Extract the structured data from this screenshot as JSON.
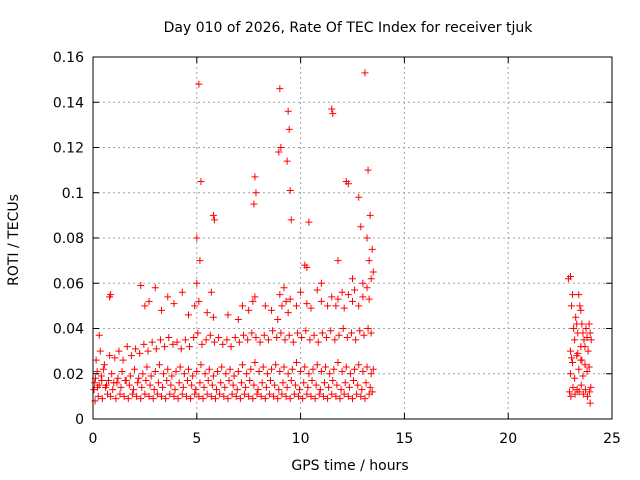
{
  "chart_data": {
    "type": "scatter",
    "title": "Day 010 of 2026, Rate Of TEC Index for receiver tjuk",
    "xlabel": "GPS time / hours",
    "ylabel": "ROTI / TECUs",
    "xlim": [
      0,
      25
    ],
    "ylim": [
      0,
      0.16
    ],
    "x_ticks": [
      0,
      5,
      10,
      15,
      20,
      25
    ],
    "x_tick_labels": [
      "0",
      "5",
      "10",
      "15",
      "20",
      "25"
    ],
    "y_ticks": [
      0,
      0.02,
      0.04,
      0.06,
      0.08,
      0.1,
      0.12,
      0.14,
      0.16
    ],
    "y_tick_labels": [
      "0",
      "0.02",
      "0.04",
      "0.06",
      "0.08",
      "0.1",
      "0.12",
      "0.14",
      "0.16"
    ],
    "grid": true,
    "marker": "+",
    "color": "#ff0000",
    "series": [
      {
        "name": "ROTI",
        "x": [
          0.05,
          0.12,
          0.2,
          0.3,
          0.4,
          0.5,
          0.6,
          0.75,
          0.9,
          1.0,
          1.2,
          1.4,
          1.6,
          1.8,
          2.0,
          2.2,
          2.4,
          2.6,
          2.8,
          3.0,
          3.2,
          3.4,
          3.6,
          3.8,
          4.0,
          4.2,
          4.4,
          4.6,
          4.8,
          5.0,
          5.2,
          5.4,
          5.6,
          5.8,
          6.0,
          6.2,
          6.4,
          6.6,
          6.8,
          7.0,
          7.2,
          7.4,
          7.6,
          7.8,
          8.0,
          8.2,
          8.4,
          8.6,
          8.8,
          9.0,
          9.2,
          9.4,
          9.6,
          9.8,
          10.0,
          10.2,
          10.4,
          10.6,
          10.8,
          11.0,
          11.2,
          11.4,
          11.6,
          11.8,
          12.0,
          12.2,
          12.4,
          12.6,
          12.8,
          13.0,
          13.2,
          13.4,
          13.5,
          0.1,
          0.25,
          0.45,
          0.7,
          0.85,
          1.1,
          1.3,
          1.5,
          1.7,
          1.9,
          2.1,
          2.3,
          2.5,
          2.7,
          2.9,
          3.1,
          3.3,
          3.5,
          3.7,
          3.9,
          4.1,
          4.3,
          4.5,
          4.7,
          4.9,
          5.1,
          5.3,
          5.5,
          5.7,
          5.9,
          6.1,
          6.3,
          6.5,
          6.7,
          6.9,
          7.1,
          7.3,
          7.5,
          7.7,
          7.9,
          8.1,
          8.3,
          8.5,
          8.7,
          8.9,
          9.1,
          9.3,
          9.5,
          9.7,
          9.9,
          10.1,
          10.3,
          10.5,
          10.7,
          10.9,
          11.1,
          11.3,
          11.5,
          11.7,
          11.9,
          12.1,
          12.3,
          12.5,
          12.7,
          12.9,
          13.1,
          13.3,
          13.45,
          0.15,
          0.35,
          0.55,
          0.8,
          1.05,
          1.25,
          1.45,
          1.65,
          1.85,
          2.05,
          2.25,
          2.45,
          2.65,
          2.85,
          3.05,
          3.25,
          3.45,
          3.65,
          3.85,
          4.05,
          4.25,
          4.45,
          4.65,
          4.85,
          5.05,
          5.25,
          5.45,
          5.65,
          5.85,
          6.05,
          6.25,
          6.45,
          6.65,
          6.85,
          7.05,
          7.25,
          7.45,
          7.65,
          7.85,
          8.05,
          8.25,
          8.45,
          8.65,
          8.85,
          9.05,
          9.25,
          9.45,
          9.65,
          9.85,
          10.05,
          10.25,
          10.45,
          10.65,
          10.85,
          11.05,
          11.25,
          11.45,
          11.65,
          11.85,
          12.05,
          12.25,
          12.45,
          12.65,
          12.85,
          13.05,
          13.25,
          13.4,
          0.08,
          0.22,
          0.42,
          0.65,
          0.95,
          1.15,
          1.35,
          1.55,
          1.75,
          1.95,
          2.15,
          2.35,
          2.55,
          2.75,
          2.95,
          3.15,
          3.35,
          3.55,
          3.75,
          3.95,
          4.15,
          4.35,
          4.55,
          4.75,
          4.95,
          5.15,
          5.35,
          5.55,
          5.75,
          5.95,
          6.15,
          6.35,
          6.55,
          6.75,
          6.95,
          7.15,
          7.35,
          7.55,
          7.75,
          7.95,
          8.15,
          8.35,
          8.55,
          8.75,
          8.95,
          9.15,
          9.35,
          9.55,
          9.75,
          9.95,
          10.15,
          10.35,
          10.55,
          10.75,
          10.95,
          11.15,
          11.35,
          11.55,
          11.75,
          11.95,
          12.15,
          12.35,
          12.55,
          12.75,
          12.95,
          13.15,
          13.35,
          0.3,
          0.8,
          0.85,
          2.3,
          2.5,
          2.7,
          3.0,
          3.3,
          3.6,
          3.9,
          4.3,
          4.6,
          4.9,
          5.0,
          5.1,
          5.5,
          5.7,
          5.8,
          6.5,
          7.0,
          7.2,
          7.5,
          7.7,
          7.8,
          8.3,
          8.6,
          8.9,
          9.0,
          9.1,
          9.2,
          9.3,
          9.4,
          9.5,
          9.8,
          10.0,
          10.3,
          10.5,
          10.8,
          11.0,
          11.3,
          11.5,
          11.7,
          11.8,
          12.0,
          12.1,
          12.3,
          12.5,
          12.6,
          12.8,
          13.0,
          13.2,
          13.3,
          13.4,
          13.5,
          5.1,
          5.2,
          5.0,
          5.15,
          5.8,
          5.85,
          7.8,
          7.75,
          7.85,
          9.0,
          9.05,
          8.95,
          9.4,
          9.45,
          9.35,
          9.5,
          9.55,
          10.4,
          11.5,
          11.55,
          12.2,
          12.3,
          12.8,
          12.9,
          13.1,
          13.25,
          13.35,
          13.45,
          13.2,
          13.3,
          13.0,
          11.8,
          11.0,
          12.5,
          10.2,
          10.3,
          22.9,
          23.0,
          23.05,
          23.1,
          23.15,
          23.2,
          23.25,
          23.3,
          23.35,
          23.4,
          23.45,
          23.5,
          23.55,
          23.6,
          23.65,
          23.7,
          23.75,
          23.8,
          23.85,
          23.9,
          23.95,
          24.0,
          22.95,
          23.02,
          23.12,
          23.22,
          23.32,
          23.42,
          23.52,
          23.62,
          23.72,
          23.82,
          23.92,
          23.98,
          23.0,
          23.1,
          23.2,
          23.3,
          23.4,
          23.5,
          23.6,
          23.7,
          23.8,
          23.9,
          23.0,
          23.05,
          23.35,
          23.5,
          23.55,
          23.95
        ],
        "y": [
          0.013,
          0.018,
          0.021,
          0.015,
          0.019,
          0.022,
          0.014,
          0.017,
          0.02,
          0.016,
          0.018,
          0.021,
          0.017,
          0.019,
          0.022,
          0.018,
          0.02,
          0.023,
          0.019,
          0.021,
          0.024,
          0.02,
          0.022,
          0.019,
          0.021,
          0.023,
          0.02,
          0.022,
          0.019,
          0.021,
          0.024,
          0.02,
          0.022,
          0.019,
          0.021,
          0.023,
          0.02,
          0.022,
          0.019,
          0.021,
          0.024,
          0.02,
          0.022,
          0.025,
          0.021,
          0.023,
          0.02,
          0.022,
          0.024,
          0.021,
          0.023,
          0.02,
          0.022,
          0.025,
          0.021,
          0.023,
          0.02,
          0.022,
          0.024,
          0.021,
          0.023,
          0.02,
          0.022,
          0.025,
          0.021,
          0.023,
          0.02,
          0.022,
          0.024,
          0.021,
          0.023,
          0.02,
          0.022,
          0.008,
          0.01,
          0.009,
          0.011,
          0.01,
          0.009,
          0.011,
          0.01,
          0.009,
          0.011,
          0.01,
          0.009,
          0.011,
          0.01,
          0.009,
          0.011,
          0.01,
          0.009,
          0.011,
          0.01,
          0.009,
          0.011,
          0.01,
          0.009,
          0.011,
          0.01,
          0.009,
          0.011,
          0.01,
          0.009,
          0.011,
          0.01,
          0.009,
          0.011,
          0.01,
          0.009,
          0.011,
          0.01,
          0.009,
          0.011,
          0.01,
          0.009,
          0.011,
          0.01,
          0.009,
          0.011,
          0.01,
          0.009,
          0.011,
          0.01,
          0.009,
          0.011,
          0.01,
          0.009,
          0.011,
          0.01,
          0.009,
          0.011,
          0.01,
          0.009,
          0.011,
          0.01,
          0.009,
          0.011,
          0.01,
          0.009,
          0.011,
          0.012,
          0.026,
          0.03,
          0.024,
          0.028,
          0.027,
          0.03,
          0.026,
          0.032,
          0.028,
          0.031,
          0.029,
          0.033,
          0.03,
          0.034,
          0.031,
          0.035,
          0.032,
          0.036,
          0.033,
          0.034,
          0.031,
          0.035,
          0.032,
          0.036,
          0.038,
          0.033,
          0.035,
          0.037,
          0.034,
          0.036,
          0.033,
          0.035,
          0.032,
          0.036,
          0.034,
          0.037,
          0.035,
          0.038,
          0.036,
          0.034,
          0.037,
          0.035,
          0.039,
          0.036,
          0.038,
          0.035,
          0.037,
          0.034,
          0.038,
          0.036,
          0.039,
          0.035,
          0.037,
          0.034,
          0.038,
          0.036,
          0.039,
          0.035,
          0.037,
          0.04,
          0.036,
          0.038,
          0.035,
          0.039,
          0.037,
          0.04,
          0.038,
          0.016,
          0.014,
          0.017,
          0.015,
          0.013,
          0.016,
          0.014,
          0.017,
          0.015,
          0.013,
          0.016,
          0.014,
          0.017,
          0.015,
          0.013,
          0.016,
          0.014,
          0.017,
          0.015,
          0.013,
          0.016,
          0.014,
          0.017,
          0.015,
          0.013,
          0.016,
          0.014,
          0.017,
          0.015,
          0.013,
          0.016,
          0.014,
          0.017,
          0.015,
          0.013,
          0.016,
          0.014,
          0.017,
          0.015,
          0.013,
          0.016,
          0.014,
          0.017,
          0.015,
          0.013,
          0.016,
          0.014,
          0.017,
          0.015,
          0.013,
          0.016,
          0.014,
          0.017,
          0.015,
          0.013,
          0.016,
          0.014,
          0.017,
          0.015,
          0.013,
          0.016,
          0.014,
          0.017,
          0.015,
          0.013,
          0.016,
          0.014,
          0.037,
          0.054,
          0.055,
          0.059,
          0.05,
          0.052,
          0.058,
          0.048,
          0.054,
          0.051,
          0.056,
          0.046,
          0.05,
          0.06,
          0.052,
          0.047,
          0.056,
          0.045,
          0.046,
          0.044,
          0.05,
          0.048,
          0.052,
          0.054,
          0.05,
          0.048,
          0.044,
          0.055,
          0.05,
          0.058,
          0.052,
          0.047,
          0.053,
          0.05,
          0.056,
          0.051,
          0.049,
          0.057,
          0.052,
          0.05,
          0.054,
          0.05,
          0.053,
          0.056,
          0.049,
          0.055,
          0.052,
          0.057,
          0.05,
          0.054,
          0.058,
          0.053,
          0.062,
          0.065,
          0.148,
          0.105,
          0.08,
          0.07,
          0.09,
          0.088,
          0.107,
          0.095,
          0.1,
          0.146,
          0.12,
          0.118,
          0.136,
          0.128,
          0.114,
          0.101,
          0.088,
          0.087,
          0.137,
          0.135,
          0.105,
          0.104,
          0.098,
          0.085,
          0.153,
          0.11,
          0.09,
          0.075,
          0.08,
          0.07,
          0.06,
          0.07,
          0.06,
          0.062,
          0.068,
          0.067,
          0.062,
          0.063,
          0.05,
          0.055,
          0.04,
          0.035,
          0.045,
          0.042,
          0.038,
          0.055,
          0.05,
          0.048,
          0.042,
          0.038,
          0.035,
          0.032,
          0.04,
          0.036,
          0.03,
          0.042,
          0.038,
          0.035,
          0.012,
          0.01,
          0.014,
          0.011,
          0.013,
          0.012,
          0.015,
          0.011,
          0.013,
          0.01,
          0.012,
          0.014,
          0.02,
          0.025,
          0.018,
          0.028,
          0.022,
          0.026,
          0.019,
          0.024,
          0.021,
          0.023,
          0.03,
          0.027,
          0.029,
          0.032,
          0.026,
          0.007
        ]
      }
    ]
  }
}
